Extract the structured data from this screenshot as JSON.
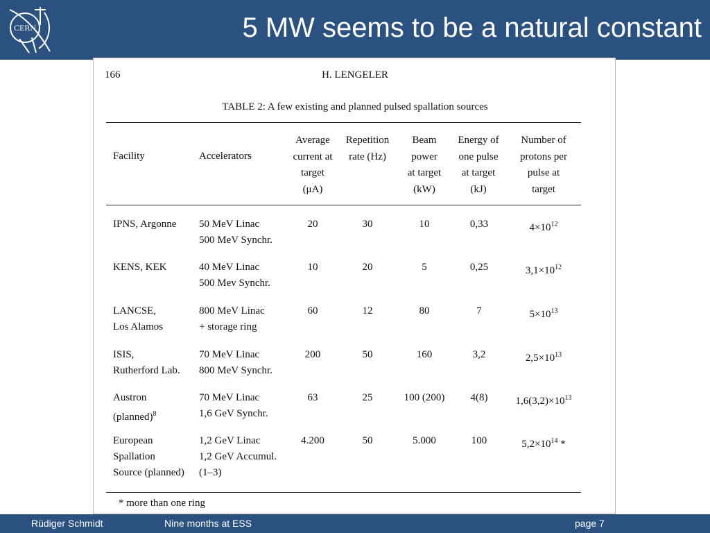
{
  "slide": {
    "title": "5 MW seems to be a natural constant",
    "logo_text": "CERN"
  },
  "document": {
    "page_number": "166",
    "author": "H. LENGELER",
    "caption": "TABLE 2:   A few existing and planned pulsed spallation sources",
    "headers": [
      "Facility",
      "Accelerators",
      "Average\ncurrent at\ntarget\n(μA)",
      "Repetition\nrate (Hz)",
      "Beam\npower\nat target\n(kW)",
      "Energy of\none pulse\nat target\n(kJ)",
      "Number of\nprotons per\npulse at\ntarget"
    ],
    "rows": [
      {
        "facility": "IPNS, Argonne",
        "accelerators": "50 MeV Linac\n500 MeV Synchr.",
        "current": "20",
        "rate": "30",
        "power": "10",
        "energy": "0,33",
        "protons": "4×10",
        "protons_exp": "12"
      },
      {
        "facility": "KENS, KEK",
        "accelerators": "40 MeV Linac\n500 Mev Synchr.",
        "current": "10",
        "rate": "20",
        "power": "5",
        "energy": "0,25",
        "protons": "3,1×10",
        "protons_exp": "12"
      },
      {
        "facility": "LANCSE,\nLos Alamos",
        "accelerators": "800 MeV Linac\n+ storage ring",
        "current": "60",
        "rate": "12",
        "power": "80",
        "energy": "7",
        "protons": "5×10",
        "protons_exp": "13"
      },
      {
        "facility": "ISIS,\nRutherford Lab.",
        "accelerators": "70 MeV Linac\n800 MeV Synchr.",
        "current": "200",
        "rate": "50",
        "power": "160",
        "energy": "3,2",
        "protons": "2,5×10",
        "protons_exp": "13"
      },
      {
        "facility": "Austron\n(planned)",
        "facility_sup": "8",
        "accelerators": "70 MeV Linac\n1,6 GeV Synchr.",
        "current": "63",
        "rate": "25",
        "power": "100 (200)",
        "energy": "4(8)",
        "protons": "1,6(3,2)×10",
        "protons_exp": "13"
      },
      {
        "facility": "European\nSpallation\nSource (planned)",
        "accelerators": "1,2 GeV Linac\n1,2 GeV Accumul.\n(1–3)",
        "current": "4.200",
        "rate": "50",
        "power": "5.000",
        "energy": "100",
        "protons": "5,2×10",
        "protons_exp": "14",
        "protons_suffix": " *"
      }
    ],
    "footnote": "* more than one ring"
  },
  "footer": {
    "author": "Rüdiger Schmidt",
    "event": "Nine months at ESS",
    "page": "page 7"
  },
  "colors": {
    "header_bg": "#2b5180",
    "footer_bg": "#2b5180",
    "title_text": "#ffffff"
  }
}
